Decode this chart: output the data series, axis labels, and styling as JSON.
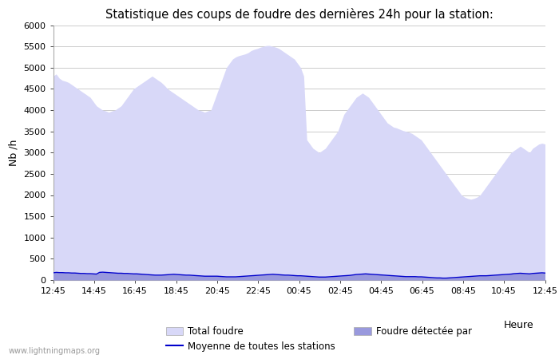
{
  "title": "Statistique des coups de foudre des dernières 24h pour la station:",
  "ylabel": "Nb /h",
  "xlabel": "Heure",
  "ylim": [
    0,
    6000
  ],
  "yticks": [
    0,
    500,
    1000,
    1500,
    2000,
    2500,
    3000,
    3500,
    4000,
    4500,
    5000,
    5500,
    6000
  ],
  "xtick_labels": [
    "12:45",
    "14:45",
    "16:45",
    "18:45",
    "20:45",
    "22:45",
    "00:45",
    "02:45",
    "04:45",
    "06:45",
    "08:45",
    "10:45",
    "12:45"
  ],
  "bg_color": "#ffffff",
  "plot_bg_color": "#ffffff",
  "grid_color": "#cccccc",
  "fill_total_color": "#d8d8f8",
  "fill_detected_color": "#9999dd",
  "line_color": "#0000cc",
  "watermark": "www.lightningmaps.org",
  "legend_items": [
    "Total foudre",
    "Moyenne de toutes les stations",
    "Foudre détectée par"
  ],
  "total_foudre": [
    4800,
    4850,
    4750,
    4700,
    4680,
    4650,
    4600,
    4550,
    4500,
    4450,
    4400,
    4350,
    4300,
    4200,
    4100,
    4050,
    4000,
    3980,
    3950,
    3980,
    4000,
    4050,
    4100,
    4200,
    4300,
    4400,
    4500,
    4550,
    4600,
    4650,
    4700,
    4750,
    4800,
    4750,
    4700,
    4650,
    4580,
    4500,
    4450,
    4400,
    4350,
    4300,
    4250,
    4200,
    4150,
    4100,
    4050,
    4000,
    3980,
    3950,
    3980,
    4000,
    4200,
    4400,
    4600,
    4800,
    5000,
    5100,
    5200,
    5250,
    5280,
    5300,
    5320,
    5350,
    5400,
    5430,
    5450,
    5480,
    5500,
    5520,
    5520,
    5500,
    5480,
    5450,
    5400,
    5350,
    5300,
    5250,
    5200,
    5100,
    5000,
    4800,
    3300,
    3200,
    3100,
    3050,
    3000,
    3050,
    3100,
    3200,
    3300,
    3400,
    3500,
    3700,
    3900,
    4000,
    4100,
    4200,
    4300,
    4350,
    4400,
    4350,
    4300,
    4200,
    4100,
    4000,
    3900,
    3800,
    3700,
    3650,
    3600,
    3580,
    3550,
    3520,
    3500,
    3480,
    3450,
    3400,
    3350,
    3300,
    3200,
    3100,
    3000,
    2900,
    2800,
    2700,
    2600,
    2500,
    2400,
    2300,
    2200,
    2100,
    2000,
    1950,
    1920,
    1900,
    1920,
    1950,
    2000,
    2100,
    2200,
    2300,
    2400,
    2500,
    2600,
    2700,
    2800,
    2900,
    3000,
    3050,
    3100,
    3150,
    3100,
    3050,
    3000,
    3100,
    3150,
    3200,
    3220,
    3200
  ],
  "moyenne": [
    170,
    180,
    175,
    175,
    170,
    170,
    165,
    165,
    160,
    155,
    155,
    150,
    150,
    145,
    140,
    180,
    185,
    180,
    175,
    170,
    165,
    160,
    160,
    155,
    155,
    150,
    145,
    145,
    140,
    135,
    130,
    125,
    120,
    115,
    115,
    115,
    120,
    125,
    130,
    135,
    130,
    125,
    120,
    115,
    115,
    110,
    105,
    100,
    95,
    90,
    90,
    90,
    90,
    90,
    85,
    80,
    75,
    75,
    75,
    75,
    80,
    85,
    90,
    95,
    100,
    105,
    110,
    115,
    120,
    125,
    130,
    135,
    130,
    125,
    120,
    115,
    115,
    110,
    105,
    100,
    100,
    95,
    90,
    85,
    80,
    75,
    70,
    70,
    70,
    75,
    80,
    85,
    90,
    95,
    100,
    105,
    110,
    120,
    130,
    135,
    140,
    145,
    140,
    135,
    130,
    125,
    120,
    115,
    110,
    105,
    100,
    95,
    90,
    85,
    80,
    80,
    80,
    80,
    75,
    75,
    70,
    65,
    60,
    55,
    50,
    50,
    45,
    45,
    50,
    55,
    60,
    65,
    70,
    75,
    80,
    85,
    90,
    95,
    100,
    100,
    100,
    105,
    110,
    115,
    120,
    125,
    130,
    135,
    140,
    150,
    155,
    160,
    155,
    150,
    145,
    155,
    160,
    165,
    170,
    165
  ]
}
